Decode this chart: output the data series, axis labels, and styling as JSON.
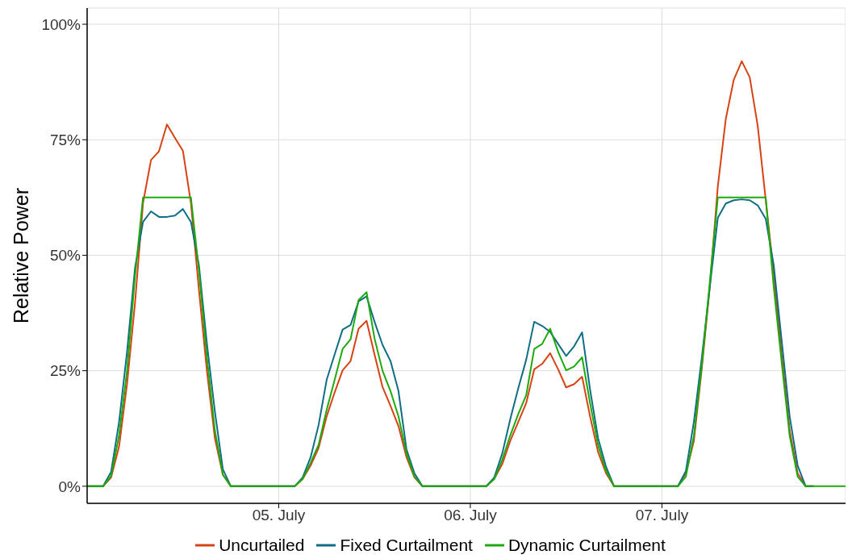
{
  "chart_data": {
    "type": "line",
    "ylabel": "Relative Power",
    "categories": [
      null,
      null,
      null,
      null,
      null,
      null,
      null,
      null,
      null,
      null,
      null,
      null,
      null,
      null,
      null,
      null,
      null,
      null,
      null,
      null,
      null,
      null,
      null,
      null,
      "05. July",
      null,
      null,
      null,
      null,
      null,
      null,
      null,
      null,
      null,
      null,
      null,
      null,
      null,
      null,
      null,
      null,
      null,
      null,
      null,
      null,
      null,
      null,
      null,
      "06. July",
      null,
      null,
      null,
      null,
      null,
      null,
      null,
      null,
      null,
      null,
      null,
      null,
      null,
      null,
      null,
      null,
      null,
      null,
      null,
      null,
      null,
      null,
      null,
      "07. July",
      null,
      null,
      null,
      null,
      null,
      null,
      null,
      null,
      null,
      null,
      null,
      null,
      null,
      null,
      null,
      null,
      null,
      null,
      null,
      null,
      null,
      null,
      null
    ],
    "series": [
      {
        "name": "Uncurtailed",
        "color": "#d84315",
        "values": [
          0,
          0,
          0,
          1.9,
          8.6,
          22.1,
          39.7,
          61.3,
          70.6,
          72.5,
          78.3,
          75.4,
          72.6,
          61.3,
          42.6,
          25,
          10.4,
          2.5,
          0,
          0,
          0,
          0,
          0,
          0,
          0,
          0,
          0,
          1.6,
          4.5,
          8.3,
          15.1,
          20.3,
          25.1,
          27.1,
          34.1,
          35.8,
          28.5,
          21.5,
          17.4,
          13,
          6.3,
          1.9,
          0,
          0,
          0,
          0,
          0,
          0,
          0,
          0,
          0,
          1.6,
          4.8,
          9.8,
          13.9,
          18,
          25.3,
          26.5,
          28.8,
          25.3,
          21.4,
          22.1,
          23.7,
          15.1,
          7.4,
          2.8,
          0,
          0,
          0,
          0,
          0,
          0,
          0,
          0,
          0,
          2.8,
          9.8,
          25.6,
          43.2,
          64.9,
          79.5,
          88,
          92,
          88.5,
          78,
          62,
          46.1,
          28.5,
          12.1,
          2.8,
          0,
          0,
          null,
          null,
          null,
          null
        ]
      },
      {
        "name": "Fixed Curtailment",
        "color": "#0f6e84",
        "values": [
          0,
          0,
          0,
          3.1,
          13.9,
          29.1,
          47.3,
          57.2,
          59.5,
          58.3,
          58.3,
          58.6,
          60,
          57.2,
          47.9,
          30.9,
          16.2,
          3.7,
          0,
          0,
          0,
          0,
          0,
          0,
          0,
          0,
          0,
          1.9,
          6.3,
          13.3,
          23,
          28.5,
          33.9,
          34.9,
          40,
          41.1,
          35.6,
          30.6,
          27.1,
          20.6,
          8,
          2.8,
          0,
          0,
          0,
          0,
          0,
          0,
          0,
          0,
          0,
          1.9,
          7.1,
          14.5,
          21.2,
          27.4,
          35.6,
          34.7,
          33.4,
          30.8,
          28.2,
          30.3,
          33.3,
          20.9,
          10.4,
          4.2,
          0,
          0,
          0,
          0,
          0,
          0,
          0,
          0,
          0,
          3.3,
          13.9,
          27.9,
          43.2,
          58.1,
          61.2,
          61.9,
          62.1,
          61.9,
          60.8,
          57.9,
          47.9,
          31.5,
          15.1,
          4.5,
          0,
          0,
          null,
          null,
          null,
          null
        ]
      },
      {
        "name": "Dynamic Curtailment",
        "color": "#1eaa0f",
        "values": [
          0,
          0,
          0,
          2.2,
          11,
          25,
          45.5,
          62.5,
          62.5,
          62.5,
          62.5,
          62.5,
          62.5,
          62.5,
          46.7,
          27.9,
          12.1,
          2.5,
          0,
          0,
          0,
          0,
          0,
          0,
          0,
          0,
          0,
          1.6,
          5.1,
          9,
          16.5,
          23,
          29.7,
          31.8,
          40.3,
          42,
          32,
          25,
          20.6,
          15.1,
          7.1,
          2.1,
          0,
          0,
          0,
          0,
          0,
          0,
          0,
          0,
          0,
          1.6,
          5.7,
          11,
          15.6,
          19.7,
          29.7,
          30.8,
          34.1,
          29.1,
          25.1,
          25.9,
          27.9,
          18,
          8.9,
          3.3,
          0,
          0,
          0,
          0,
          0,
          0,
          0,
          0,
          0,
          2.1,
          10.9,
          26.2,
          44.3,
          62.5,
          62.5,
          62.5,
          62.5,
          62.5,
          62.5,
          62.5,
          43.2,
          26.8,
          10.9,
          2.1,
          0,
          0,
          0,
          0,
          0,
          0
        ]
      }
    ],
    "ylim": [
      -3.7,
      103.5
    ],
    "yticks": [
      {
        "value": 0,
        "label": "0%"
      },
      {
        "value": 25,
        "label": "25%"
      },
      {
        "value": 50,
        "label": "50%"
      },
      {
        "value": 75,
        "label": "75%"
      },
      {
        "value": 100,
        "label": "100%"
      }
    ],
    "grid": true,
    "legend": "bottom",
    "marker": "none",
    "line_style": "solid"
  }
}
